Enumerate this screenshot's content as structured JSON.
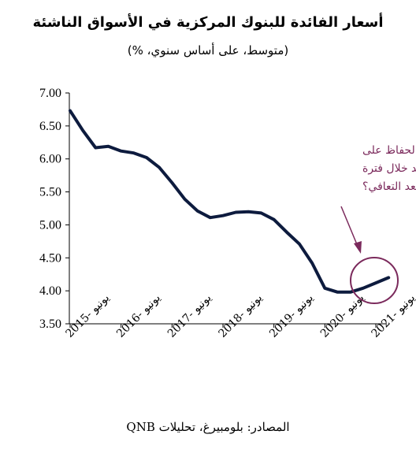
{
  "title": "أسعار الفائدة للبنوك المركزية في الأسواق الناشئة",
  "subtitle": "(متوسط، على أساس سنوي، %)",
  "source": "المصادر: بلومبيرغ، تحليلات QNB",
  "annotation": {
    "lines": [
      "بدء الحفاظ على",
      "التشديد خلال فترة",
      "ما بعد التعافي؟"
    ],
    "color": "#7b2a5c"
  },
  "chart_data": {
    "type": "line",
    "title": "أسعار الفائدة للبنوك المركزية في الأسواق الناشئة",
    "ylim": [
      3.5,
      7.0
    ],
    "yticks": [
      "7.00",
      "6.50",
      "6.00",
      "5.50",
      "5.00",
      "4.50",
      "4.00",
      "3.50"
    ],
    "xtick_labels": [
      "يونيو -2015",
      "يونيو -2016",
      "يونيو -2017",
      "يونيو -2018",
      "يونيو -2019",
      "يونيو -2020",
      "يونيو -2021"
    ],
    "line_color": "#0d1b3e",
    "series": [
      {
        "x": [
          "2015-06",
          "2015-09",
          "2015-12",
          "2016-03",
          "2016-06",
          "2016-09",
          "2016-12",
          "2017-03",
          "2017-06",
          "2017-09",
          "2017-12",
          "2018-03",
          "2018-06",
          "2018-09",
          "2018-12",
          "2019-03",
          "2019-06",
          "2019-09",
          "2019-12",
          "2020-03",
          "2020-06",
          "2020-09",
          "2020-12",
          "2021-03",
          "2021-06",
          "2021-09"
        ],
        "values": [
          6.73,
          6.43,
          6.17,
          6.19,
          6.12,
          6.09,
          6.02,
          5.87,
          5.64,
          5.39,
          5.21,
          5.11,
          5.14,
          5.19,
          5.2,
          5.18,
          5.08,
          4.89,
          4.71,
          4.42,
          4.04,
          3.98,
          3.98,
          4.04,
          4.12,
          4.2
        ]
      }
    ],
    "grid": false
  }
}
